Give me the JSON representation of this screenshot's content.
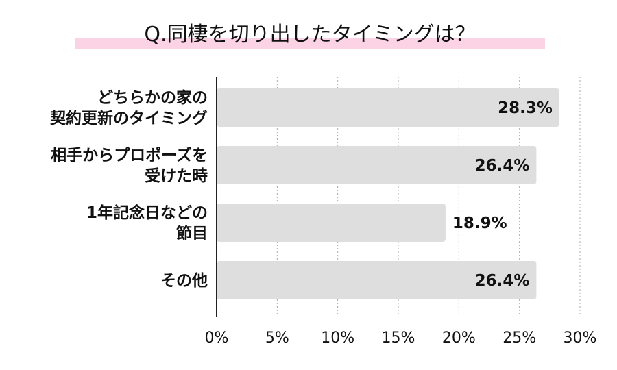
{
  "chart_data": {
    "type": "bar",
    "orientation": "horizontal",
    "title": "Q.同棲を切り出したタイミングは？",
    "categories": [
      [
        "どちらかの家の",
        "契約更新のタイミング"
      ],
      [
        "相手からプロポーズを",
        "受けた時"
      ],
      [
        "1年記念日などの",
        "節目"
      ],
      [
        "その他"
      ]
    ],
    "values": [
      28.3,
      26.4,
      18.9,
      26.4
    ],
    "value_labels": [
      "28.3%",
      "26.4%",
      "18.9%",
      "26.4%"
    ],
    "xlim": [
      0,
      30
    ],
    "x_ticks": [
      0,
      5,
      10,
      15,
      20,
      25,
      30
    ],
    "x_tick_labels": [
      "0%",
      "5%",
      "10%",
      "15%",
      "20%",
      "25%",
      "30%"
    ],
    "grid": "vertical-dotted",
    "bar_color": "#dedede",
    "title_underline_color": "#fbd3e4",
    "axis_color": "#222222",
    "grid_color": "#aaaaaa"
  }
}
